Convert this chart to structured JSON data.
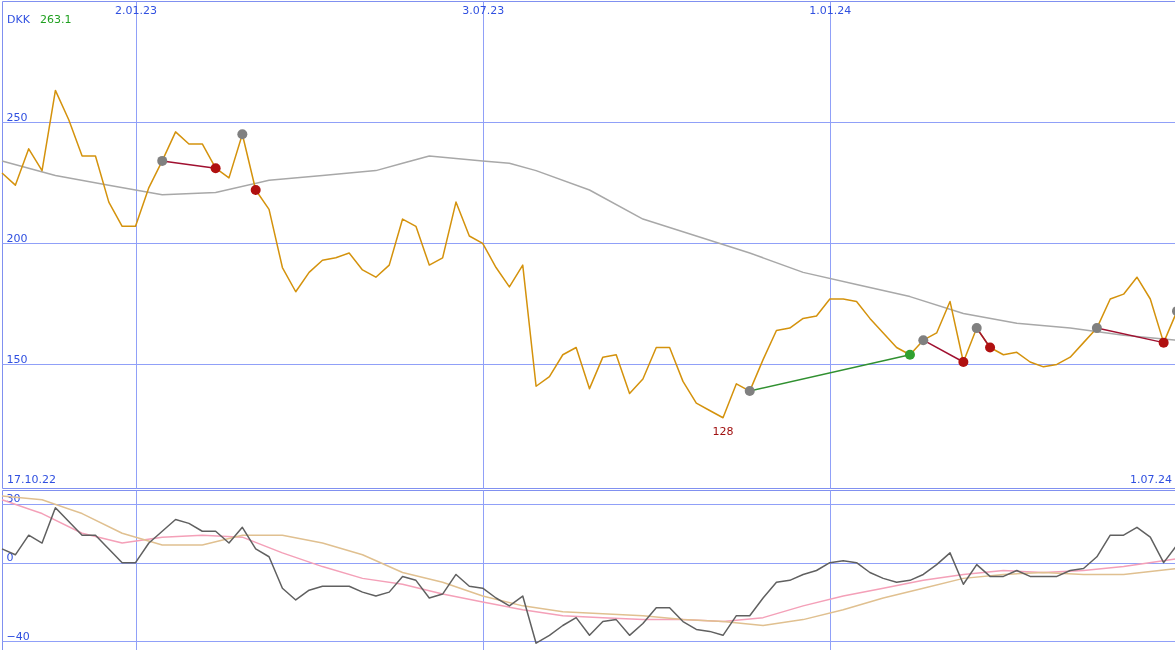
{
  "chart_data": [
    {
      "type": "line",
      "xlim": [
        "2022-10-24",
        "2024-07-01"
      ],
      "ylim": [
        99,
        300
      ],
      "yticks": [
        150,
        200,
        250
      ],
      "grid": true,
      "xticks": [
        {
          "value": "2023-01-02",
          "label": "2.01.23"
        },
        {
          "value": "2023-07-03",
          "label": "3.07.23"
        },
        {
          "value": "2024-01-01",
          "label": "1.01.24"
        }
      ],
      "annotations": [
        "DKK",
        "263.1",
        {
          "text": "128",
          "x": "2023-11-06",
          "y": 128
        },
        "17.10.22",
        "1.07.24"
      ],
      "x": [
        "2022-10-24",
        "2022-10-31",
        "2022-11-07",
        "2022-11-14",
        "2022-11-21",
        "2022-11-28",
        "2022-12-05",
        "2022-12-12",
        "2022-12-19",
        "2022-12-26",
        "2023-01-02",
        "2023-01-09",
        "2023-01-16",
        "2023-01-23",
        "2023-01-30",
        "2023-02-06",
        "2023-02-13",
        "2023-02-20",
        "2023-02-27",
        "2023-03-06",
        "2023-03-13",
        "2023-03-20",
        "2023-03-27",
        "2023-04-03",
        "2023-04-10",
        "2023-04-17",
        "2023-04-24",
        "2023-05-01",
        "2023-05-08",
        "2023-05-15",
        "2023-05-22",
        "2023-05-29",
        "2023-06-05",
        "2023-06-12",
        "2023-06-19",
        "2023-06-26",
        "2023-07-03",
        "2023-07-10",
        "2023-07-17",
        "2023-07-24",
        "2023-07-31",
        "2023-08-07",
        "2023-08-14",
        "2023-08-21",
        "2023-08-28",
        "2023-09-04",
        "2023-09-11",
        "2023-09-18",
        "2023-09-25",
        "2023-10-02",
        "2023-10-09",
        "2023-10-16",
        "2023-10-23",
        "2023-10-30",
        "2023-11-06",
        "2023-11-13",
        "2023-11-20",
        "2023-11-27",
        "2023-12-04",
        "2023-12-11",
        "2023-12-18",
        "2023-12-25",
        "2024-01-01",
        "2024-01-08",
        "2024-01-15",
        "2024-01-22",
        "2024-01-29",
        "2024-02-05",
        "2024-02-12",
        "2024-02-19",
        "2024-02-26",
        "2024-03-04",
        "2024-03-11",
        "2024-03-18",
        "2024-03-25",
        "2024-04-01",
        "2024-04-08",
        "2024-04-15",
        "2024-04-22",
        "2024-04-29",
        "2024-05-06",
        "2024-05-13",
        "2024-05-20",
        "2024-05-27",
        "2024-06-03",
        "2024-06-10",
        "2024-06-17",
        "2024-06-24",
        "2024-07-01"
      ],
      "series": [
        {
          "color": "#a8a8a8",
          "x": [
            "2022-10-24",
            "2022-11-21",
            "2022-12-19",
            "2023-01-16",
            "2023-02-13",
            "2023-03-13",
            "2023-04-10",
            "2023-05-08",
            "2023-05-22",
            "2023-06-05",
            "2023-06-19",
            "2023-07-03",
            "2023-07-17",
            "2023-07-31",
            "2023-08-28",
            "2023-09-25",
            "2023-10-23",
            "2023-11-20",
            "2023-12-18",
            "2024-01-15",
            "2024-02-12",
            "2024-03-11",
            "2024-04-08",
            "2024-05-06",
            "2024-06-03",
            "2024-07-01"
          ],
          "values": [
            234,
            228,
            224,
            220,
            221,
            226,
            228,
            230,
            233,
            236,
            235,
            234,
            233,
            230,
            222,
            210,
            203,
            196,
            188,
            183,
            178,
            171,
            167,
            165,
            162,
            160
          ]
        },
        {
          "color": "#d4920c",
          "values": [
            229,
            224,
            239,
            230,
            263.1,
            251,
            236,
            236,
            217,
            207,
            207,
            223,
            234,
            246,
            241,
            241,
            231,
            227,
            245,
            222,
            214,
            190,
            180,
            188,
            193,
            194,
            196,
            189,
            186,
            191,
            210,
            207,
            191,
            194,
            217,
            203,
            200,
            190,
            182,
            191,
            141,
            145,
            154,
            157,
            140,
            153,
            154,
            138,
            144,
            157,
            157,
            143,
            134,
            131,
            128,
            142,
            139,
            152,
            164,
            165,
            169,
            170,
            177,
            177,
            176,
            169,
            163,
            157,
            154,
            160,
            163,
            176,
            151,
            165,
            157,
            154,
            155,
            151,
            149,
            150,
            153,
            159,
            165,
            177,
            179,
            186,
            177,
            159,
            172
          ]
        },
        {
          "type": "line",
          "color": "#a01030",
          "x": [
            "2023-01-16",
            "2023-02-13"
          ],
          "values": [
            234,
            231
          ]
        },
        {
          "type": "line",
          "color": "#309030",
          "x": [
            "2023-11-20",
            "2024-02-12"
          ],
          "values": [
            139,
            154
          ]
        },
        {
          "type": "line",
          "color": "#a01030",
          "x": [
            "2024-02-19",
            "2024-03-11"
          ],
          "values": [
            160,
            151
          ]
        },
        {
          "type": "line",
          "color": "#a01030",
          "x": [
            "2024-03-18",
            "2024-03-25"
          ],
          "values": [
            165,
            157
          ]
        },
        {
          "type": "line",
          "color": "#a01030",
          "x": [
            "2024-05-20",
            "2024-06-24"
          ],
          "values": [
            165,
            159
          ]
        },
        {
          "type": "scatter",
          "color": "#808080",
          "x": [
            "2023-01-16",
            "2023-02-27",
            "2023-11-20",
            "2024-02-19",
            "2024-03-18",
            "2024-05-20",
            "2024-07-01"
          ],
          "values": [
            234,
            245,
            139,
            160,
            165,
            165,
            172
          ]
        },
        {
          "type": "scatter",
          "color": "#b01010",
          "x": [
            "2023-02-13",
            "2023-03-06",
            "2024-03-11",
            "2024-03-25",
            "2024-06-24"
          ],
          "values": [
            231,
            222,
            151,
            157,
            159
          ]
        },
        {
          "type": "scatter",
          "color": "#30a030",
          "x": [
            "2024-02-12"
          ],
          "values": [
            154
          ]
        }
      ]
    },
    {
      "type": "line",
      "xlim": [
        "2022-10-24",
        "2024-07-01"
      ],
      "ylim": [
        -46,
        37
      ],
      "yticks": [
        -40,
        0,
        30
      ],
      "grid": true,
      "tick_labels": "y",
      "xticks": [
        {
          "value": "2023-01-02",
          "label": null
        },
        {
          "value": "2023-07-03",
          "label": null
        },
        {
          "value": "2024-01-01",
          "label": null
        }
      ],
      "x": [
        "2022-10-24",
        "2022-10-31",
        "2022-11-07",
        "2022-11-14",
        "2022-11-21",
        "2022-11-28",
        "2022-12-05",
        "2022-12-12",
        "2022-12-19",
        "2022-12-26",
        "2023-01-02",
        "2023-01-09",
        "2023-01-16",
        "2023-01-23",
        "2023-01-30",
        "2023-02-06",
        "2023-02-13",
        "2023-02-20",
        "2023-02-27",
        "2023-03-06",
        "2023-03-13",
        "2023-03-20",
        "2023-03-27",
        "2023-04-03",
        "2023-04-10",
        "2023-04-17",
        "2023-04-24",
        "2023-05-01",
        "2023-05-08",
        "2023-05-15",
        "2023-05-22",
        "2023-05-29",
        "2023-06-05",
        "2023-06-12",
        "2023-06-19",
        "2023-06-26",
        "2023-07-03",
        "2023-07-10",
        "2023-07-17",
        "2023-07-24",
        "2023-07-31",
        "2023-08-07",
        "2023-08-14",
        "2023-08-21",
        "2023-08-28",
        "2023-09-04",
        "2023-09-11",
        "2023-09-18",
        "2023-09-25",
        "2023-10-02",
        "2023-10-09",
        "2023-10-16",
        "2023-10-23",
        "2023-10-30",
        "2023-11-06",
        "2023-11-13",
        "2023-11-20",
        "2023-11-27",
        "2023-12-04",
        "2023-12-11",
        "2023-12-18",
        "2023-12-25",
        "2024-01-01",
        "2024-01-08",
        "2024-01-15",
        "2024-01-22",
        "2024-01-29",
        "2024-02-05",
        "2024-02-12",
        "2024-02-19",
        "2024-02-26",
        "2024-03-04",
        "2024-03-11",
        "2024-03-18",
        "2024-03-25",
        "2024-04-01",
        "2024-04-08",
        "2024-04-15",
        "2024-04-22",
        "2024-04-29",
        "2024-05-06",
        "2024-05-13",
        "2024-05-20",
        "2024-05-27",
        "2024-06-03",
        "2024-06-10",
        "2024-06-17",
        "2024-06-24",
        "2024-07-01"
      ],
      "series": [
        {
          "color": "#f4a0b8",
          "x": [
            "2022-10-24",
            "2022-11-14",
            "2022-12-05",
            "2022-12-26",
            "2023-01-16",
            "2023-02-06",
            "2023-02-27",
            "2023-03-20",
            "2023-04-10",
            "2023-05-01",
            "2023-05-22",
            "2023-06-12",
            "2023-07-03",
            "2023-07-24",
            "2023-08-14",
            "2023-09-04",
            "2023-09-25",
            "2023-10-16",
            "2023-11-06",
            "2023-11-27",
            "2023-12-18",
            "2024-01-08",
            "2024-01-29",
            "2024-02-19",
            "2024-03-11",
            "2024-04-01",
            "2024-04-22",
            "2024-05-13",
            "2024-06-03",
            "2024-07-01"
          ],
          "values": [
            32,
            25,
            15,
            10,
            13,
            14,
            13,
            5,
            -2,
            -8,
            -11,
            -16,
            -20,
            -24,
            -27,
            -28,
            -29,
            -29,
            -30,
            -28,
            -22,
            -17,
            -13,
            -9,
            -6,
            -4,
            -5,
            -4,
            -2,
            2
          ]
        },
        {
          "color": "#e0c090",
          "x": [
            "2022-10-24",
            "2022-11-14",
            "2022-12-05",
            "2022-12-26",
            "2023-01-16",
            "2023-02-06",
            "2023-02-27",
            "2023-03-20",
            "2023-04-10",
            "2023-05-01",
            "2023-05-22",
            "2023-06-12",
            "2023-07-03",
            "2023-07-24",
            "2023-08-14",
            "2023-09-04",
            "2023-09-25",
            "2023-10-16",
            "2023-11-06",
            "2023-11-27",
            "2023-12-18",
            "2024-01-08",
            "2024-01-29",
            "2024-02-19",
            "2024-03-11",
            "2024-04-01",
            "2024-04-22",
            "2024-05-13",
            "2024-06-03",
            "2024-07-01"
          ],
          "values": [
            34,
            32,
            25,
            15,
            9,
            9,
            14,
            14,
            10,
            4,
            -5,
            -10,
            -17,
            -22,
            -25,
            -26,
            -27,
            -29,
            -30,
            -32,
            -29,
            -24,
            -18,
            -13,
            -8,
            -6,
            -5,
            -6,
            -6,
            -3
          ]
        },
        {
          "color": "#606060",
          "values": [
            7,
            4,
            14,
            10,
            28,
            21,
            14,
            14,
            7,
            0,
            0,
            10,
            16,
            22,
            20,
            16,
            16,
            10,
            18,
            7,
            3,
            -13,
            -19,
            -14,
            -12,
            -12,
            -12,
            -15,
            -17,
            -15,
            -7,
            -9,
            -18,
            -16,
            -6,
            -12,
            -13,
            -18,
            -22,
            -17,
            -41,
            -37,
            -32,
            -28,
            -37,
            -30,
            -29,
            -37,
            -31,
            -23,
            -23,
            -30,
            -34,
            -35,
            -37,
            -27,
            -27,
            -18,
            -10,
            -9,
            -6,
            -4,
            0,
            1,
            0,
            -5,
            -8,
            -10,
            -9,
            -6,
            -1,
            5,
            -11,
            -1,
            -7,
            -7,
            -4,
            -7,
            -7,
            -7,
            -4,
            -3,
            3,
            14,
            14,
            18,
            13,
            0,
            9
          ]
        }
      ]
    }
  ]
}
